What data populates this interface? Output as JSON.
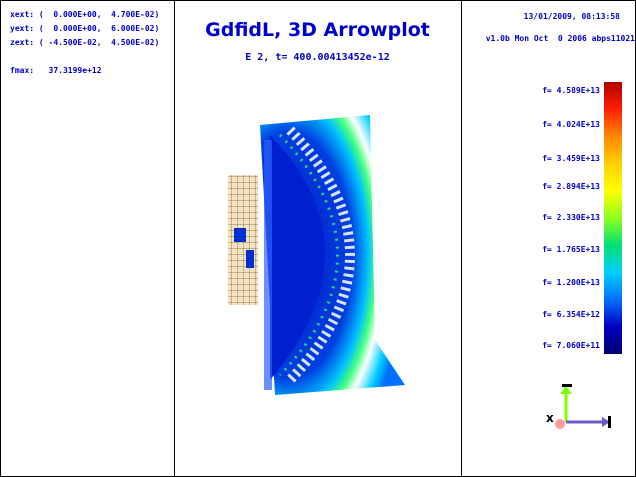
{
  "header": {
    "xext": "xext: (  0.000E+00,  4.700E-02)",
    "yext": "yext: (  0.000E+00,  6.000E-02)",
    "zext": "zext: ( -4.500E-02,  4.500E-02)",
    "fmax": "fmax:   37.3199e+12",
    "title": "GdfidL, 3D Arrowplot",
    "subtitle": "E 2, t= 400.00413452e-12",
    "timestamp": "13/01/2009, 08:13:58",
    "version": "v1.0b Mon Oct  0 2006 abps11021"
  },
  "legend": {
    "labels": [
      "f= 4.589E+13",
      "f= 4.024E+13",
      "f= 3.459E+13",
      "f= 2.894E+13",
      "f= 2.330E+13",
      "f= 1.765E+13",
      "f= 1.200E+13",
      "f= 6.354E+12",
      "f= 7.060E+11"
    ],
    "colors_top_to_bottom": [
      "#b00000",
      "#ff2000",
      "#ff8800",
      "#ffd000",
      "#ffff00",
      "#90ff20",
      "#00e070",
      "#00d0ff",
      "#0070ff",
      "#0000c0",
      "#000070"
    ]
  },
  "axes_icon": {
    "x_color": "#6a5acd",
    "y_color": "#7cfc00",
    "z_color": "#ff9999"
  }
}
